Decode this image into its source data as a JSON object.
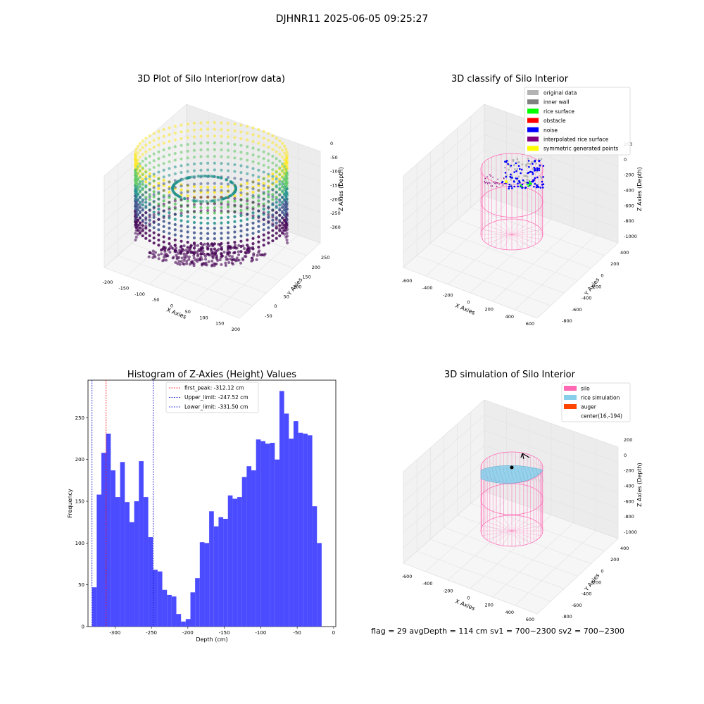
{
  "figure": {
    "suptitle": "DJHNR11 2025-06-05 09:25:27",
    "footer": "flag = 29  avgDepth = 114 cm  sv1 = 700~2300  sv2 = 700~2300"
  },
  "colors": {
    "histogram_bar": "#4b4bff",
    "first_peak_line": "#ff0000",
    "limit_lines": "#0000cc",
    "silo": "#ff69b4",
    "rice_simulation": "#87ceeb",
    "auger": "#ff4500",
    "original_data": "#b3b3b3",
    "inner_wall": "#808080",
    "rice_surface": "#00ff00",
    "obstacle": "#ff0000",
    "noise": "#0000ff",
    "interpolated_rice_surface": "#800080",
    "symmetric_generated_points": "#ffff00"
  },
  "chart_data": [
    {
      "type": "scatter",
      "title": "3D Plot of Silo Interior(row data)",
      "xlabel": "X Axies",
      "ylabel": "Y Axies",
      "zlabel": "Z Axies (Depth)",
      "xticks": [
        "-200",
        "-150",
        "-100",
        "-50",
        "0",
        "50",
        "100",
        "150",
        "200"
      ],
      "yticks": [
        "-50",
        "0",
        "50",
        "100",
        "150",
        "200",
        "250"
      ],
      "zticks": [
        "0",
        "-50",
        "-100",
        "-150",
        "-200",
        "-250",
        "-300"
      ],
      "xlim": [
        -200,
        200
      ],
      "ylim": [
        -50,
        250
      ],
      "zlim": [
        -330,
        0
      ],
      "colormap": "viridis"
    },
    {
      "type": "scatter",
      "title": "3D classify of Silo Interior",
      "xlabel": "X Axies",
      "ylabel": "Y Axies",
      "zlabel": "Z Axies (Depth)",
      "xticks": [
        "-600",
        "-400",
        "-200",
        "0",
        "200",
        "400",
        "600"
      ],
      "yticks": [
        "-800",
        "-600",
        "-400",
        "-200",
        "0",
        "200",
        "400"
      ],
      "zticks": [
        "200",
        "0",
        "-200",
        "-400",
        "-600",
        "-800",
        "-1000"
      ],
      "legend": [
        "original data",
        "inner wall",
        "rice surface",
        "obstacle",
        "noise",
        "interpolated rice surface",
        "symmetric generated points"
      ],
      "legend_position": "top-right"
    },
    {
      "type": "bar",
      "title": "Histogram of Z-Axies (Height) Values",
      "xlabel": "Depth (cm)",
      "ylabel": "Frequency",
      "xlim": [
        -337,
        3
      ],
      "ylim": [
        0,
        295
      ],
      "xticks": [
        -300,
        -250,
        -200,
        -150,
        -100,
        -50,
        0
      ],
      "yticks": [
        0,
        50,
        100,
        150,
        200,
        250
      ],
      "bin_start": -331.5,
      "bin_width": 6.43,
      "values": [
        47,
        158,
        208,
        231,
        187,
        155,
        197,
        149,
        125,
        150,
        198,
        155,
        107,
        68,
        66,
        44,
        38,
        36,
        15,
        6,
        9,
        41,
        58,
        101,
        100,
        138,
        120,
        131,
        129,
        157,
        153,
        155,
        179,
        192,
        187,
        224,
        222,
        219,
        220,
        200,
        282,
        255,
        225,
        246,
        232,
        231,
        229,
        144,
        100
      ],
      "vlines": [
        {
          "x": -312.12,
          "label": "first_peak: -312.12 cm",
          "style": "red"
        },
        {
          "x": -247.52,
          "label": "Upper_limit: -247.52 cm",
          "style": "blue"
        },
        {
          "x": -331.5,
          "label": "Lower_limit: -331.50 cm",
          "style": "blue"
        }
      ],
      "legend_position": "top-center"
    },
    {
      "type": "scatter",
      "title": "3D simulation of Silo Interior",
      "xlabel": "X Axies",
      "ylabel": "Y Axies",
      "zlabel": "Z Axies (Depth)",
      "xticks": [
        "-600",
        "-400",
        "-200",
        "0",
        "200",
        "400",
        "600"
      ],
      "yticks": [
        "-800",
        "-600",
        "-400",
        "-200",
        "0",
        "200",
        "400"
      ],
      "zticks": [
        "200",
        "0",
        "-200",
        "-400",
        "-600",
        "-800",
        "-1000"
      ],
      "legend": [
        "silo",
        "rice simulation",
        "auger",
        "center(16,-194)"
      ],
      "legend_position": "top-right"
    }
  ]
}
